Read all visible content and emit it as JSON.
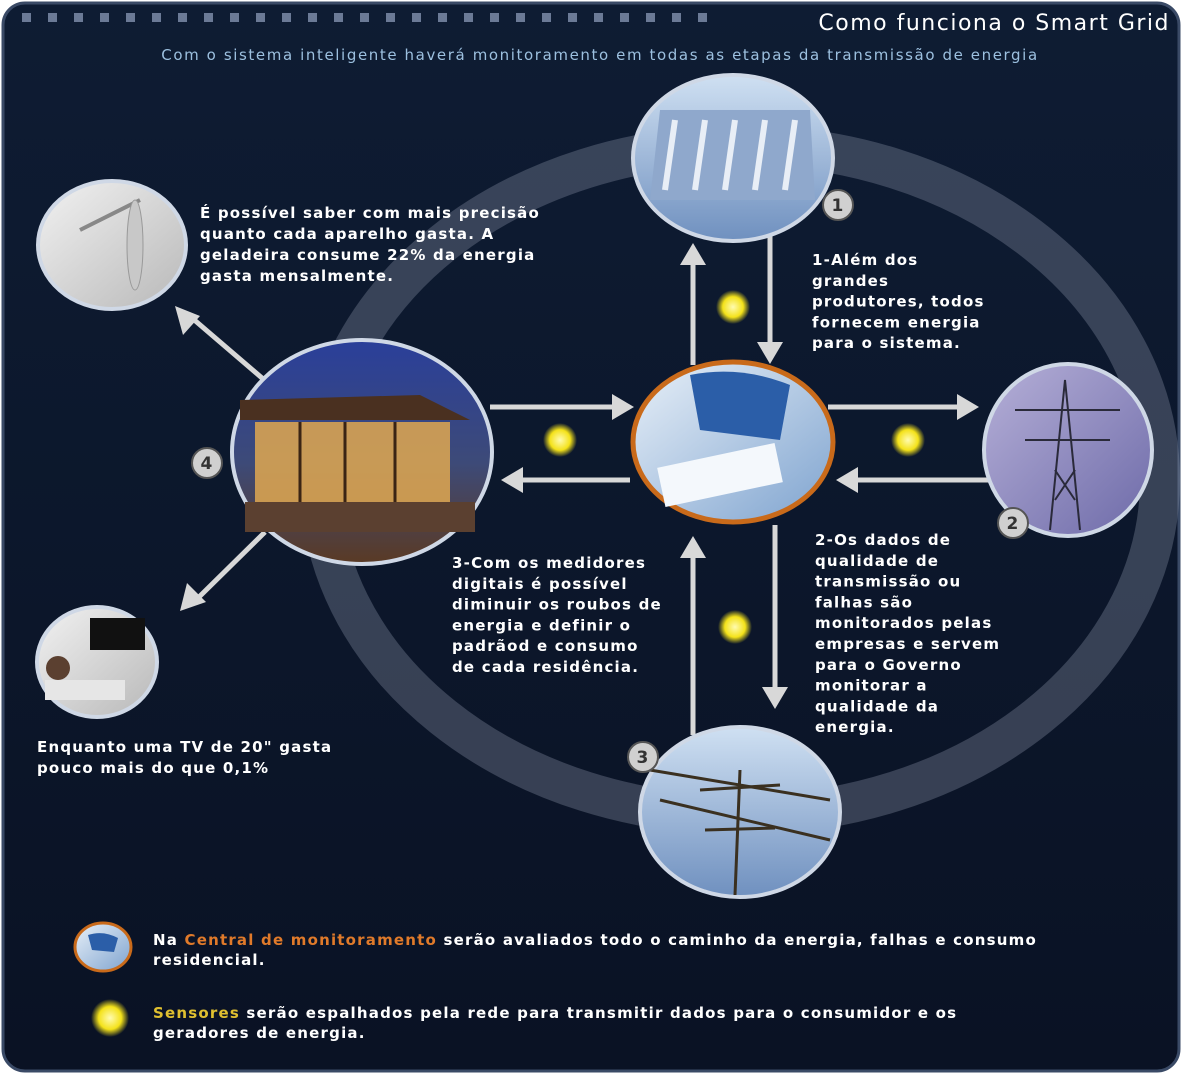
{
  "header": {
    "title": "Como funciona o Smart Grid",
    "subtitle": "Com o sistema inteligente haverá monitoramento em todas as etapas da transmissão de energia"
  },
  "steps": [
    {
      "badge": "1",
      "lines": [
        "1-Além dos",
        "grandes",
        "produtores, todos",
        "fornecem energia",
        "para o sistema."
      ]
    },
    {
      "badge": "2",
      "lines": [
        "2-Os dados de",
        "qualidade de",
        "transmissão ou",
        "falhas são",
        "monitorados pelas",
        "empresas e servem",
        "para o Governo",
        "monitorar a",
        "qualidade da",
        "energia."
      ]
    },
    {
      "badge": "3",
      "lines": [
        "3-Com os medidores",
        "digitais é possível",
        "diminuir os roubos de",
        "energia e definir o",
        "padrãod e consumo",
        "de cada residência."
      ]
    },
    {
      "badge": "4",
      "lines": []
    }
  ],
  "notes": {
    "fridge": [
      "É possível saber com mais precisão",
      "quanto cada aparelho gasta. A",
      "geladeira consume 22% da energia",
      "gasta mensalmente."
    ],
    "tv": [
      "Enquanto uma TV de 20\" gasta",
      "pouco mais do que 0,1%"
    ]
  },
  "legend": [
    {
      "prefix": "Na ",
      "highlight": "Central de monitoramento",
      "lines": [
        " serão avaliados todo o caminho da energia, falhas e consumo",
        "residencial."
      ]
    },
    {
      "prefix": "",
      "highlight": "Sensores",
      "lines": [
        " serão espalhados pela rede para transmitir dados para o consumidor e os",
        "geradores de energia."
      ]
    }
  ]
}
